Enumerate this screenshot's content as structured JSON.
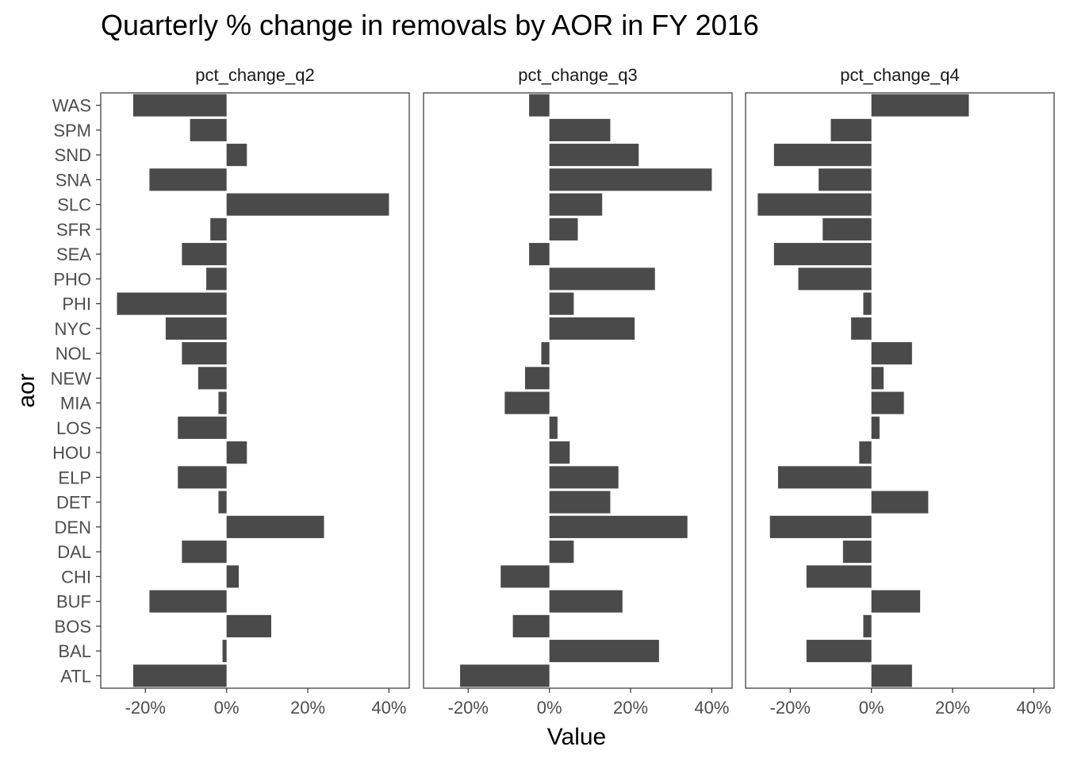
{
  "chart_data": {
    "type": "bar",
    "orientation": "horizontal",
    "facets": "side-by-side",
    "title": "Quarterly % change in removals by AOR in FY 2016",
    "xlabel": "Value",
    "ylabel": "aor",
    "xlim": [
      -0.31,
      0.45
    ],
    "xticks": [
      -0.2,
      0,
      0.2,
      0.4
    ],
    "xtick_labels": [
      "-20%",
      "0%",
      "20%",
      "40%"
    ],
    "bar_color": "#4a4a4a",
    "grid": false,
    "categories": [
      "WAS",
      "SPM",
      "SND",
      "SNA",
      "SLC",
      "SFR",
      "SEA",
      "PHO",
      "PHI",
      "NYC",
      "NOL",
      "NEW",
      "MIA",
      "LOS",
      "HOU",
      "ELP",
      "DET",
      "DEN",
      "DAL",
      "CHI",
      "BUF",
      "BOS",
      "BAL",
      "ATL"
    ],
    "series": [
      {
        "name": "pct_change_q2",
        "values": [
          -0.23,
          -0.09,
          0.05,
          -0.19,
          0.4,
          -0.04,
          -0.11,
          -0.05,
          -0.27,
          -0.15,
          -0.11,
          -0.07,
          -0.02,
          -0.12,
          0.05,
          -0.12,
          -0.02,
          0.24,
          -0.11,
          0.03,
          -0.19,
          0.11,
          -0.01,
          -0.23
        ]
      },
      {
        "name": "pct_change_q3",
        "values": [
          -0.05,
          0.15,
          0.22,
          0.4,
          0.13,
          0.07,
          -0.05,
          0.26,
          0.06,
          0.21,
          -0.02,
          -0.06,
          -0.11,
          0.02,
          0.05,
          0.17,
          0.15,
          0.34,
          0.06,
          -0.12,
          0.18,
          -0.09,
          0.27,
          -0.22
        ]
      },
      {
        "name": "pct_change_q4",
        "values": [
          0.24,
          -0.1,
          -0.24,
          -0.13,
          -0.28,
          -0.12,
          -0.24,
          -0.18,
          -0.02,
          -0.05,
          0.1,
          0.03,
          0.08,
          0.02,
          -0.03,
          -0.23,
          0.14,
          -0.25,
          -0.07,
          -0.16,
          0.12,
          -0.02,
          -0.16,
          0.1
        ]
      }
    ]
  }
}
